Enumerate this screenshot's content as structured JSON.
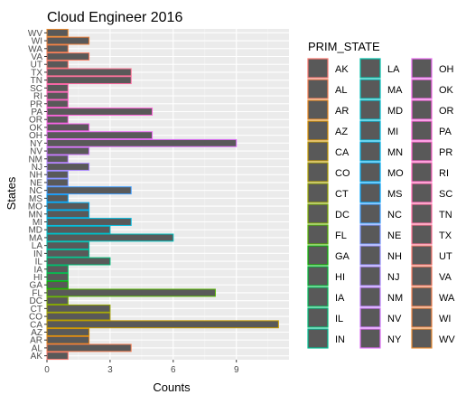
{
  "chart_data": {
    "type": "bar",
    "orientation": "horizontal",
    "title": "Cloud Engineer 2016",
    "xlabel": "Counts",
    "ylabel": "States",
    "xlim": [
      0,
      11.5
    ],
    "xticks": [
      0,
      3,
      6,
      9
    ],
    "grid": true,
    "legend_position": "right",
    "legend_title": "PRIM_STATE",
    "bar_fill": "#595959",
    "panel_background": "#ebebeb",
    "categories": [
      "AK",
      "AL",
      "AR",
      "AZ",
      "CA",
      "CO",
      "CT",
      "DC",
      "FL",
      "GA",
      "HI",
      "IA",
      "IL",
      "IN",
      "LA",
      "MA",
      "MD",
      "MI",
      "MN",
      "MO",
      "MS",
      "NC",
      "NE",
      "NH",
      "NJ",
      "NM",
      "NV",
      "NY",
      "OH",
      "OK",
      "OR",
      "PA",
      "PR",
      "RI",
      "SC",
      "TN",
      "TX",
      "UT",
      "VA",
      "WA",
      "WI",
      "WV"
    ],
    "values": [
      1,
      4,
      2,
      2,
      11,
      3,
      3,
      1,
      8,
      1,
      1,
      1,
      3,
      2,
      2,
      6,
      3,
      4,
      2,
      2,
      1,
      4,
      1,
      1,
      2,
      1,
      2,
      9,
      5,
      2,
      1,
      5,
      1,
      1,
      1,
      4,
      4,
      1,
      2,
      1,
      2,
      1
    ],
    "outline_colors": [
      "#F8766D",
      "#F27D52",
      "#E7851E",
      "#D89000",
      "#C49A00",
      "#B0A100",
      "#99A800",
      "#7CAE00",
      "#55B400",
      "#0CB702",
      "#00BA38",
      "#00BD5C",
      "#00BF7A",
      "#00C094",
      "#00C1AB",
      "#00C0BF",
      "#00BECF",
      "#00BADE",
      "#00B5EB",
      "#00ADF6",
      "#00A5FF",
      "#3E9DFF",
      "#7995FF",
      "#9590FF",
      "#AA88FF",
      "#BE80FF",
      "#CF78FF",
      "#DF70F8",
      "#EA6AF1",
      "#F265E8",
      "#F763DE",
      "#FB61D7",
      "#FE61CB",
      "#FF63BF",
      "#FF66B1",
      "#FF6AA1",
      "#FC6F91",
      "#F8766D",
      "#F67A5E",
      "#F27F4D",
      "#EE8440",
      "#E98B32"
    ]
  }
}
